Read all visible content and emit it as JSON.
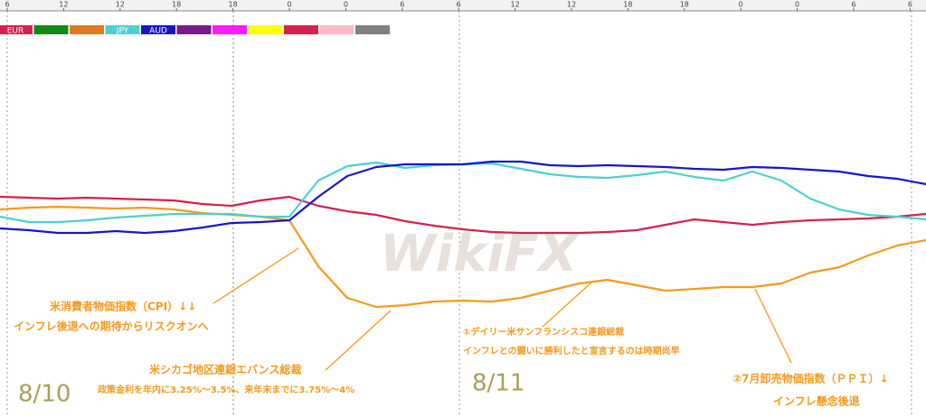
{
  "chart_data": {
    "type": "line",
    "xlim": [
      0,
      32
    ],
    "ylim": [
      0,
      419
    ],
    "x": [
      0,
      1,
      2,
      3,
      4,
      5,
      6,
      7,
      8,
      9,
      10,
      11,
      12,
      13,
      14,
      15,
      16,
      17,
      18,
      19,
      20,
      21,
      22,
      23,
      24,
      25,
      26,
      27,
      28,
      29,
      30,
      31,
      32
    ],
    "xticks": [
      {
        "value": 0.25,
        "label": "6"
      },
      {
        "value": 2.2,
        "label": "12"
      },
      {
        "value": 4.15,
        "label": "12"
      },
      {
        "value": 6.1,
        "label": "18"
      },
      {
        "value": 8.05,
        "label": "18"
      },
      {
        "value": 10.0,
        "label": "0"
      },
      {
        "value": 11.95,
        "label": "0"
      },
      {
        "value": 13.9,
        "label": "6"
      },
      {
        "value": 15.85,
        "label": "6"
      },
      {
        "value": 17.8,
        "label": "12"
      },
      {
        "value": 19.75,
        "label": "12"
      },
      {
        "value": 21.7,
        "label": "18"
      },
      {
        "value": 23.65,
        "label": "18"
      },
      {
        "value": 25.6,
        "label": "0"
      },
      {
        "value": 27.55,
        "label": "0"
      },
      {
        "value": 29.5,
        "label": "6"
      },
      {
        "value": 31.45,
        "label": "6"
      }
    ],
    "legend": [
      {
        "name": "EUR",
        "color": "#d6204e"
      },
      {
        "name": null,
        "color": "#138a13"
      },
      {
        "name": null,
        "color": "#e07a22"
      },
      {
        "name": "JPY",
        "color": "#4fcfcf"
      },
      {
        "name": "AUD",
        "color": "#1616c8"
      },
      {
        "name": null,
        "color": "#7b1a8a"
      },
      {
        "name": null,
        "color": "#ff1aff"
      },
      {
        "name": null,
        "color": "#ffff00"
      },
      {
        "name": null,
        "color": "#d6204e"
      },
      {
        "name": null,
        "color": "#ffb6c8"
      },
      {
        "name": null,
        "color": "#808080"
      }
    ],
    "series": [
      {
        "name": "EUR",
        "color": "#d6204e",
        "values": [
          241,
          240,
          239,
          240,
          239,
          238,
          237,
          233,
          231,
          237,
          241,
          231,
          225,
          221,
          214,
          209,
          205,
          202,
          201,
          201,
          201,
          202,
          204,
          210,
          216,
          213,
          210,
          213,
          215,
          216,
          217,
          219,
          222
        ]
      },
      {
        "name": null,
        "color": "#f39a1e",
        "values": [
          227,
          229,
          230,
          229,
          228,
          229,
          227,
          223,
          221,
          219,
          215,
          164,
          129,
          119,
          121,
          125,
          126,
          125,
          129,
          137,
          145,
          149,
          143,
          137,
          139,
          141,
          141,
          145,
          157,
          163,
          176,
          187,
          193
        ]
      },
      {
        "name": "JPY",
        "color": "#4fcfcf",
        "values": [
          219,
          213,
          213,
          215,
          218,
          220,
          222,
          222,
          222,
          219,
          219,
          259,
          275,
          279,
          273,
          276,
          277,
          278,
          272,
          266,
          263,
          262,
          265,
          269,
          263,
          259,
          269,
          259,
          239,
          227,
          221,
          219,
          216
        ]
      },
      {
        "name": "AUD",
        "color": "#1616c8",
        "values": [
          206,
          204,
          201,
          201,
          203,
          201,
          203,
          207,
          212,
          213,
          215,
          241,
          264,
          274,
          277,
          277,
          277,
          280,
          280,
          276,
          275,
          276,
          275,
          274,
          272,
          271,
          274,
          273,
          271,
          269,
          264,
          261,
          255
        ]
      }
    ],
    "annotations": [
      "米消費者物価指数（CPI）↓↓",
      "インフレ後退への期待からリスクオンへ",
      "米シカゴ地区連銀エバンス総裁",
      "政策金利を年内に3.25%～3.5%、来年末までに3.75%～4%",
      "①デイリー米サンフランシスコ連銀総裁",
      "インフレとの闘いに勝利したと宣言するのは時期尚早",
      "②7月卸売物価指数（ＰＰＩ）↓",
      "インフレ懸念後退"
    ],
    "date_labels": [
      "8/10",
      "8/11"
    ],
    "watermark": "WikiFX"
  }
}
